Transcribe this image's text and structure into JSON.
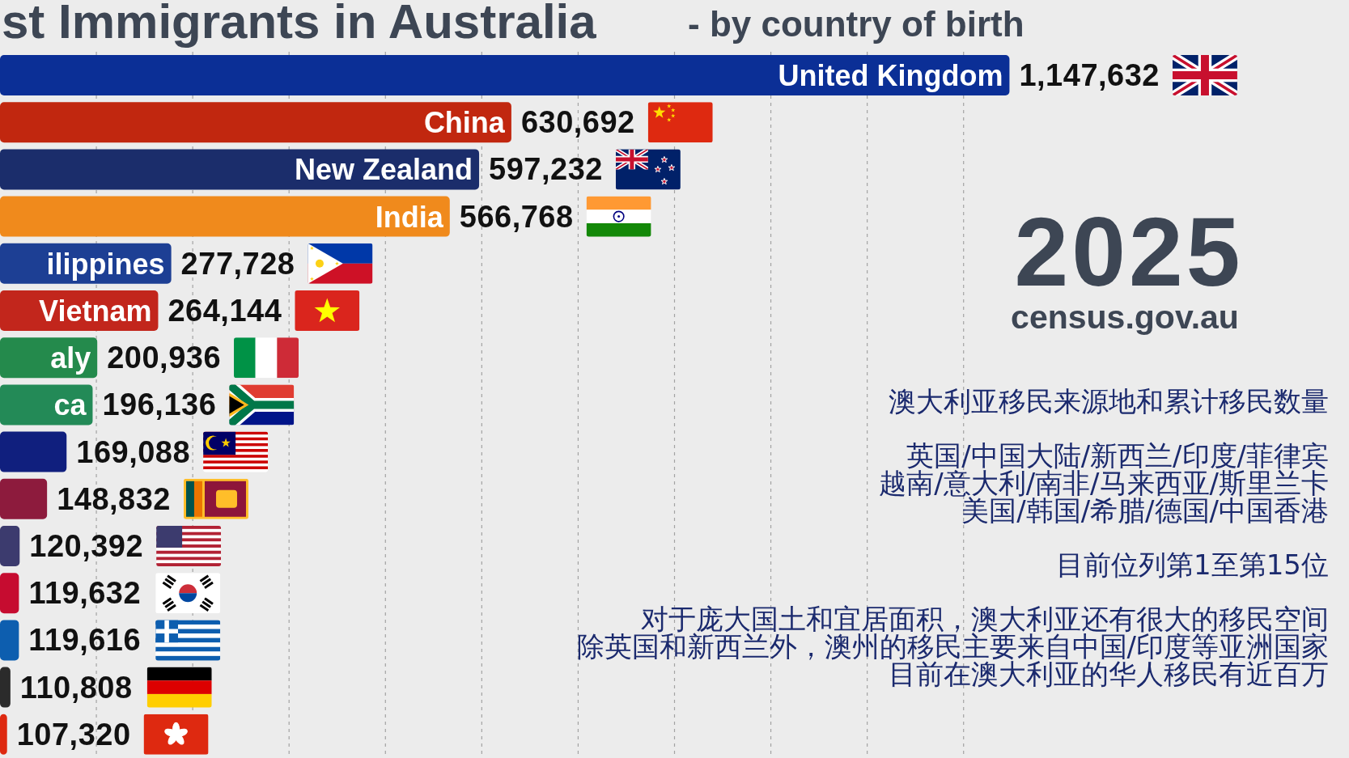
{
  "chart_data": {
    "type": "bar",
    "orientation": "horizontal",
    "title": "st Immigrants in Australia",
    "subtitle": "- by country of birth",
    "categories": [
      "United Kingdom",
      "China",
      "New Zealand",
      "India",
      "ilippines",
      "Vietnam",
      "aly",
      "ca",
      null,
      null,
      null,
      null,
      null,
      null,
      null
    ],
    "values": [
      1147632,
      630692,
      597232,
      566768,
      277728,
      264144,
      200936,
      196136,
      169088,
      148832,
      120392,
      119632,
      119616,
      110808,
      107320
    ],
    "value_labels": [
      "1,147,632",
      "630,692",
      "597,232",
      "566,768",
      "277,728",
      "264,144",
      "200,936",
      "196,136",
      "169,088",
      "148,832",
      "120,392",
      "119,632",
      "119,616",
      "110,808",
      "107,320"
    ],
    "colors": [
      "#0b2f96",
      "#c1270f",
      "#1b2d6b",
      "#f08a1c",
      "#1d3f94",
      "#c2261c",
      "#248a4c",
      "#238a57",
      "#101f7e",
      "#8d1b3d",
      "#3c3b6e",
      "#c60c30",
      "#0d5eaf",
      "#2b2b2b",
      "#de2910"
    ],
    "xlim": [
      100000,
      1500000
    ],
    "xticks": [
      {
        "value": 200000,
        "label": null
      },
      {
        "value": 300000,
        "label": null
      },
      {
        "value": 400000,
        "label": null
      },
      {
        "value": 500000,
        "label": null
      },
      {
        "value": 600000,
        "label": null
      },
      {
        "value": 700000,
        "label": null
      },
      {
        "value": 800000,
        "label": null
      },
      {
        "value": 900000,
        "label": null
      },
      {
        "value": 1000000,
        "label": null
      },
      {
        "value": 1100000,
        "label": null
      }
    ],
    "grid": "x",
    "tick_labels": "y",
    "annotations": [
      "2025",
      "census.gov.au",
      "澳大利亚移民来源地和累计移民数量",
      "英国/中国大陆/新西兰/印度/菲律宾",
      "越南/意大利/南非/马来西亚/斯里兰卡",
      "美国/韩国/希腊/德国/中国香港",
      "目前位列第1至第15位",
      "对于庞大国土和宜居面积，澳大利亚还有很大的移民空间",
      "除英国和新西兰外，澳州的移民主要来自中国/印度等亚洲国家",
      "目前在澳大利亚的华人移民有近百万"
    ]
  }
}
